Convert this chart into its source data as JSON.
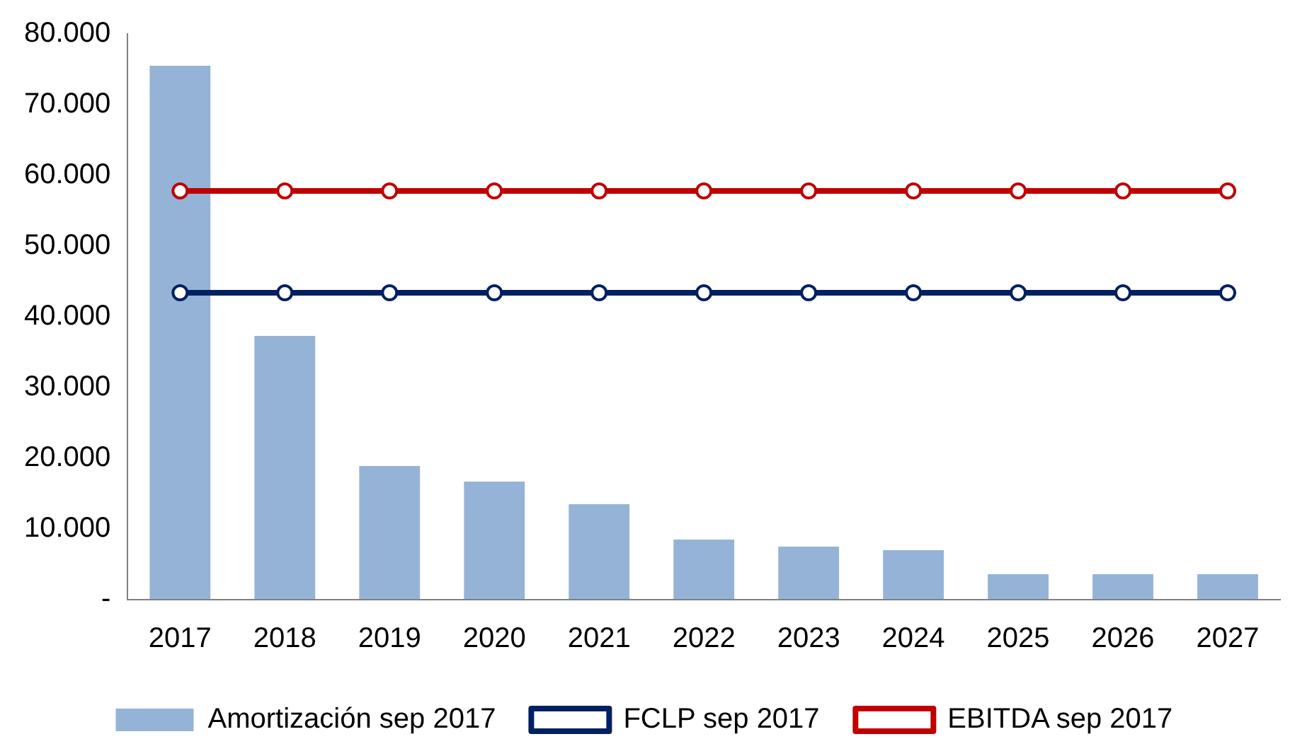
{
  "chart_data": {
    "type": "bar",
    "categories": [
      "2017",
      "2018",
      "2019",
      "2020",
      "2021",
      "2022",
      "2023",
      "2024",
      "2025",
      "2026",
      "2027"
    ],
    "series": [
      {
        "name": "Amortización sep 2017",
        "color": "#95b3d7",
        "values": [
          75500,
          37300,
          18900,
          16700,
          13500,
          8500,
          7500,
          7000,
          3600,
          3600,
          3600
        ]
      },
      {
        "name": "FCLP sep 2017",
        "type": "line",
        "color": "#002060",
        "values": [
          43400,
          43400,
          43400,
          43400,
          43400,
          43400,
          43400,
          43400,
          43400,
          43400,
          43400
        ]
      },
      {
        "name": "EBITDA sep 2017",
        "type": "line",
        "color": "#c00000",
        "values": [
          57800,
          57800,
          57800,
          57800,
          57800,
          57800,
          57800,
          57800,
          57800,
          57800,
          57800
        ]
      }
    ],
    "ylim": [
      0,
      80000
    ],
    "yticks": [
      {
        "value": 0,
        "label": "-"
      },
      {
        "value": 10000,
        "label": "10.000"
      },
      {
        "value": 20000,
        "label": "20.000"
      },
      {
        "value": 30000,
        "label": "30.000"
      },
      {
        "value": 40000,
        "label": "40.000"
      },
      {
        "value": 50000,
        "label": "50.000"
      },
      {
        "value": 60000,
        "label": "60.000"
      },
      {
        "value": 70000,
        "label": "70.000"
      },
      {
        "value": 80000,
        "label": "80.000"
      }
    ],
    "grid": false,
    "legend": "bottom",
    "marker": "circle"
  }
}
